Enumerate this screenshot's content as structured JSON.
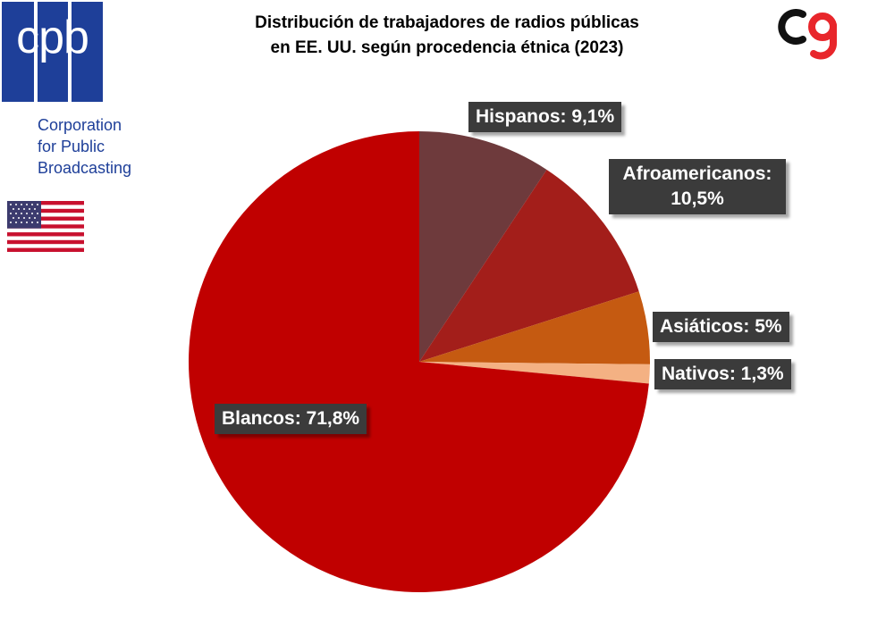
{
  "header": {
    "title_line1": "Distribución de trabajadores de radios públicas",
    "title_line2": "en EE. UU. según procedencia étnica (2023)"
  },
  "branding": {
    "cpb_mark": "cpb",
    "cpb_name_line1": "Corporation",
    "cpb_name_line2": "for Public",
    "cpb_name_line3": "Broadcasting",
    "flag_icon": "us-flag-icon",
    "corner_logo_icon": "cg-logo-icon"
  },
  "chart_data": {
    "type": "pie",
    "categories": [
      "Hispanos",
      "Afroamericanos",
      "Asiáticos",
      "Nativos",
      "Blancos"
    ],
    "values": [
      9.1,
      10.5,
      5,
      1.3,
      71.8
    ],
    "colors": [
      "#6e3a3c",
      "#a31e1a",
      "#c55a11",
      "#f4b183",
      "#c00000"
    ],
    "labels": [
      "Hispanos: 9,1%",
      "Afroamericanos: 10,5%",
      "Asiáticos: 5%",
      "Nativos: 1,3%",
      "Blancos: 71,8%"
    ],
    "start_angle_deg": 0,
    "direction": "clockwise"
  }
}
